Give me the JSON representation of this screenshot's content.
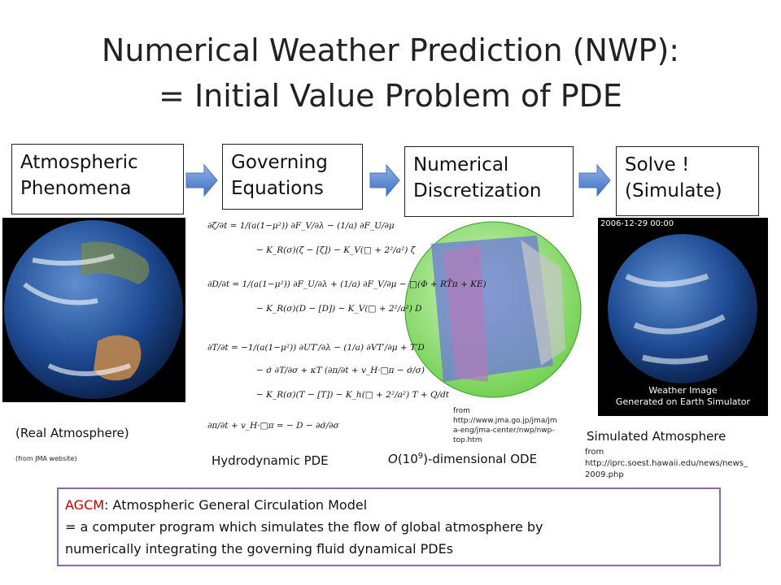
{
  "title": {
    "lines": [
      "Numerical Weather Prediction (NWP):",
      "= Initial Value Problem of PDE"
    ]
  },
  "steps": [
    {
      "lines": [
        "Atmospheric",
        "Phenomena"
      ]
    },
    {
      "lines": [
        "Governing",
        "Equations"
      ]
    },
    {
      "lines": [
        "Numerical",
        "Discretization"
      ]
    },
    {
      "lines": [
        "Solve !",
        "(Simulate)"
      ]
    }
  ],
  "real": {
    "caption": "(Real Atmosphere)",
    "source": "(from JMA website)"
  },
  "pde": {
    "caption": "Hydrodynamic PDE",
    "equations": [
      "∂ζ/∂t = 1/(a(1−μ²)) ∂F_V/∂λ − (1/a) ∂F_U/∂μ",
      "− K_R(σ)(ζ − [ζ]) − K_V(□ + 2²/a²) ζ",
      "∂D/∂t = 1/(a(1−μ²)) ∂F_U/∂λ + (1/a) ∂F_V/∂μ − □(Φ + RT̄π + KE)",
      "− K_R(σ)(D − [D]) − K_V(□ + 2²/a²) D",
      "∂T/∂t = −1/(a(1−μ²)) ∂UT′/∂λ − (1/a) ∂VT′/∂μ + T′D",
      "− σ̇ ∂T/∂σ + κT (∂π/∂t + v_H·□π − σ̇/σ)",
      "− K_R(σ)(T − [T]) − K_h(□ + 2²/a²) T + Q/dt",
      "∂π/∂t + v_H·□π = − D − ∂σ̇/∂σ"
    ]
  },
  "ode": {
    "prefix": "O",
    "base": "(10",
    "exponent": "9",
    "suffix": ")-dimensional ODE",
    "source": [
      "from",
      "http://www.jma.go.jp/jma/jm",
      "a-eng/jma-center/nwp/nwp-",
      "top.htm"
    ]
  },
  "sim": {
    "caption": "Simulated Atmosphere",
    "stamp": "2006-12-29   00:00",
    "image_lines": [
      "Weather Image",
      "Generated on Earth Simulator"
    ],
    "source": [
      "from",
      "http://iprc.soest.hawaii.edu/news/news_",
      "2009.php"
    ]
  },
  "agcm": {
    "term": "AGCM",
    "definition": ": Atmospheric General Circulation Model",
    "lines": [
      "= a computer program which simulates the flow of global atmosphere by",
      "numerically integrating the governing fluid dynamical PDEs"
    ]
  }
}
